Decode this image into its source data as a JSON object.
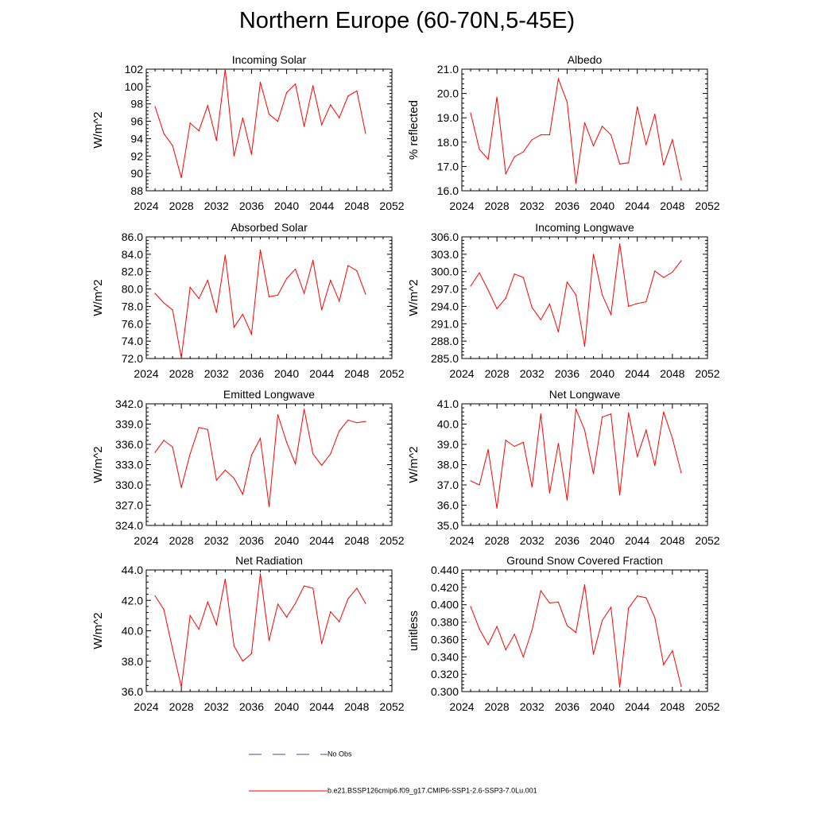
{
  "title": "Northern Europe (60-70N,5-45E)",
  "legend": {
    "obs_label": "No Obs",
    "obs_color": "#4a4aa8",
    "model_label": "b.e21.BSSP126cmip6.f09_g17.CMIP6-SSP1-2.6-SSP3-7.0Lu.001",
    "model_color": "#ff0000"
  },
  "chart_data": [
    {
      "type": "line",
      "title": "Incoming Solar",
      "ylabel": "W/m^2",
      "xlim": [
        2024,
        2052
      ],
      "xticks": [
        2024,
        2028,
        2032,
        2036,
        2040,
        2044,
        2048,
        2052
      ],
      "ylim": [
        88,
        102
      ],
      "yticks": [
        "88",
        "90",
        "92",
        "94",
        "96",
        "98",
        "100",
        "102"
      ],
      "x": [
        2025,
        2026,
        2027,
        2028,
        2029,
        2030,
        2031,
        2032,
        2033,
        2034,
        2035,
        2036,
        2037,
        2038,
        2039,
        2040,
        2041,
        2042,
        2043,
        2044,
        2045,
        2046,
        2047,
        2048,
        2049
      ],
      "series": [
        {
          "color": "#ff0000",
          "values": [
            97.7,
            94.6,
            93.2,
            89.5,
            95.8,
            94.9,
            97.8,
            93.8,
            102.0,
            92.0,
            96.4,
            92.2,
            100.5,
            96.8,
            96.0,
            99.3,
            100.3,
            95.4,
            100.1,
            95.6,
            97.9,
            96.4,
            98.9,
            99.5,
            94.6
          ]
        }
      ]
    },
    {
      "type": "line",
      "title": "Albedo",
      "ylabel": "% reflected",
      "xlim": [
        2024,
        2052
      ],
      "xticks": [
        2024,
        2028,
        2032,
        2036,
        2040,
        2044,
        2048,
        2052
      ],
      "ylim": [
        16.0,
        21.0
      ],
      "yticks": [
        "16.0",
        "17.0",
        "18.0",
        "19.0",
        "20.0",
        "21.0"
      ],
      "x": [
        2025,
        2026,
        2027,
        2028,
        2029,
        2030,
        2031,
        2032,
        2033,
        2034,
        2035,
        2036,
        2037,
        2038,
        2039,
        2040,
        2041,
        2042,
        2043,
        2044,
        2045,
        2046,
        2047,
        2048,
        2049
      ],
      "series": [
        {
          "color": "#ff0000",
          "values": [
            19.2,
            17.7,
            17.3,
            19.85,
            16.7,
            17.4,
            17.6,
            18.1,
            18.3,
            18.3,
            20.6,
            19.65,
            16.3,
            18.8,
            17.85,
            18.65,
            18.3,
            17.1,
            17.15,
            19.45,
            17.9,
            19.15,
            17.05,
            18.1,
            16.45
          ]
        }
      ]
    },
    {
      "type": "line",
      "title": "Absorbed Solar",
      "ylabel": "W/m^2",
      "xlim": [
        2024,
        2052
      ],
      "xticks": [
        2024,
        2028,
        2032,
        2036,
        2040,
        2044,
        2048,
        2052
      ],
      "ylim": [
        72.0,
        86.0
      ],
      "yticks": [
        "72.0",
        "74.0",
        "76.0",
        "78.0",
        "80.0",
        "82.0",
        "84.0",
        "86.0"
      ],
      "x": [
        2025,
        2026,
        2027,
        2028,
        2029,
        2030,
        2031,
        2032,
        2033,
        2034,
        2035,
        2036,
        2037,
        2038,
        2039,
        2040,
        2041,
        2042,
        2043,
        2044,
        2045,
        2046,
        2047,
        2048,
        2049
      ],
      "series": [
        {
          "color": "#ff0000",
          "values": [
            79.5,
            78.4,
            77.6,
            72.1,
            80.2,
            78.9,
            81.0,
            77.3,
            83.9,
            75.6,
            77.1,
            74.8,
            84.5,
            79.1,
            79.3,
            81.2,
            82.3,
            79.5,
            83.3,
            77.6,
            81.0,
            78.6,
            82.7,
            82.1,
            79.4
          ]
        }
      ]
    },
    {
      "type": "line",
      "title": "Incoming Longwave",
      "ylabel": "W/m^2",
      "xlim": [
        2024,
        2052
      ],
      "xticks": [
        2024,
        2028,
        2032,
        2036,
        2040,
        2044,
        2048,
        2052
      ],
      "ylim": [
        285.0,
        306.0
      ],
      "yticks": [
        "285.0",
        "288.0",
        "291.0",
        "294.0",
        "297.0",
        "300.0",
        "303.0",
        "306.0"
      ],
      "x": [
        2025,
        2026,
        2027,
        2028,
        2029,
        2030,
        2031,
        2032,
        2033,
        2034,
        2035,
        2036,
        2037,
        2038,
        2039,
        2040,
        2041,
        2042,
        2043,
        2044,
        2045,
        2046,
        2047,
        2048,
        2049
      ],
      "series": [
        {
          "color": "#ff0000",
          "values": [
            297.5,
            299.8,
            296.8,
            293.6,
            295.4,
            299.6,
            299.0,
            293.8,
            291.7,
            294.4,
            289.6,
            298.2,
            296.0,
            287.1,
            303.0,
            296.0,
            292.6,
            304.8,
            294.0,
            294.5,
            294.8,
            300.1,
            299.0,
            299.9,
            301.9
          ]
        }
      ]
    },
    {
      "type": "line",
      "title": "Emitted Longwave",
      "ylabel": "W/m^2",
      "xlim": [
        2024,
        2052
      ],
      "xticks": [
        2024,
        2028,
        2032,
        2036,
        2040,
        2044,
        2048,
        2052
      ],
      "ylim": [
        324.0,
        342.0
      ],
      "yticks": [
        "324.0",
        "327.0",
        "330.0",
        "333.0",
        "336.0",
        "339.0",
        "342.0"
      ],
      "x": [
        2025,
        2026,
        2027,
        2028,
        2029,
        2030,
        2031,
        2032,
        2033,
        2034,
        2035,
        2036,
        2037,
        2038,
        2039,
        2040,
        2041,
        2042,
        2043,
        2044,
        2045,
        2046,
        2047,
        2048,
        2049
      ],
      "series": [
        {
          "color": "#ff0000",
          "values": [
            334.8,
            336.6,
            335.6,
            329.6,
            334.6,
            338.5,
            338.2,
            330.7,
            332.2,
            331.0,
            328.6,
            334.4,
            336.9,
            326.8,
            340.4,
            336.3,
            333.1,
            341.2,
            334.6,
            332.9,
            334.6,
            338.0,
            339.6,
            339.2,
            339.4
          ]
        }
      ]
    },
    {
      "type": "line",
      "title": "Net Longwave",
      "ylabel": "W/m^2",
      "xlim": [
        2024,
        2052
      ],
      "xticks": [
        2024,
        2028,
        2032,
        2036,
        2040,
        2044,
        2048,
        2052
      ],
      "ylim": [
        35.0,
        41.0
      ],
      "yticks": [
        "35.0",
        "36.0",
        "37.0",
        "38.0",
        "39.0",
        "40.0",
        "41.0"
      ],
      "x": [
        2025,
        2026,
        2027,
        2028,
        2029,
        2030,
        2031,
        2032,
        2033,
        2034,
        2035,
        2036,
        2037,
        2038,
        2039,
        2040,
        2041,
        2042,
        2043,
        2044,
        2045,
        2046,
        2047,
        2048,
        2049
      ],
      "series": [
        {
          "color": "#ff0000",
          "values": [
            37.2,
            37.0,
            38.75,
            35.85,
            39.2,
            38.9,
            39.1,
            36.9,
            40.5,
            36.6,
            39.05,
            36.25,
            40.75,
            39.7,
            37.55,
            40.35,
            40.5,
            36.5,
            40.55,
            38.4,
            39.7,
            37.95,
            40.6,
            39.3,
            37.6
          ]
        }
      ]
    },
    {
      "type": "line",
      "title": "Net Radiation",
      "ylabel": "W/m^2",
      "xlim": [
        2024,
        2052
      ],
      "xticks": [
        2024,
        2028,
        2032,
        2036,
        2040,
        2044,
        2048,
        2052
      ],
      "ylim": [
        36.0,
        44.0
      ],
      "yticks": [
        "36.0",
        "38.0",
        "40.0",
        "42.0",
        "44.0"
      ],
      "x": [
        2025,
        2026,
        2027,
        2028,
        2029,
        2030,
        2031,
        2032,
        2033,
        2034,
        2035,
        2036,
        2037,
        2038,
        2039,
        2040,
        2041,
        2042,
        2043,
        2044,
        2045,
        2046,
        2047,
        2048,
        2049
      ],
      "series": [
        {
          "color": "#ff0000",
          "values": [
            42.3,
            41.4,
            38.8,
            36.3,
            41.0,
            40.1,
            41.9,
            40.4,
            43.4,
            39.0,
            38.0,
            38.5,
            43.75,
            39.35,
            41.75,
            40.9,
            41.8,
            42.95,
            42.8,
            39.15,
            41.25,
            40.6,
            42.1,
            42.8,
            41.8
          ]
        }
      ]
    },
    {
      "type": "line",
      "title": "Ground Snow Covered Fraction",
      "ylabel": "unitless",
      "xlim": [
        2024,
        2052
      ],
      "xticks": [
        2024,
        2028,
        2032,
        2036,
        2040,
        2044,
        2048,
        2052
      ],
      "ylim": [
        0.3,
        0.44
      ],
      "yticks": [
        "0.300",
        "0.320",
        "0.340",
        "0.360",
        "0.380",
        "0.400",
        "0.420",
        "0.440"
      ],
      "x": [
        2025,
        2026,
        2027,
        2028,
        2029,
        2030,
        2031,
        2032,
        2033,
        2034,
        2035,
        2036,
        2037,
        2038,
        2039,
        2040,
        2041,
        2042,
        2043,
        2044,
        2045,
        2046,
        2047,
        2048,
        2049
      ],
      "series": [
        {
          "color": "#ff0000",
          "values": [
            0.398,
            0.372,
            0.354,
            0.375,
            0.348,
            0.366,
            0.34,
            0.371,
            0.416,
            0.402,
            0.403,
            0.376,
            0.368,
            0.423,
            0.343,
            0.382,
            0.397,
            0.305,
            0.396,
            0.41,
            0.408,
            0.385,
            0.331,
            0.347,
            0.306
          ]
        }
      ]
    }
  ]
}
